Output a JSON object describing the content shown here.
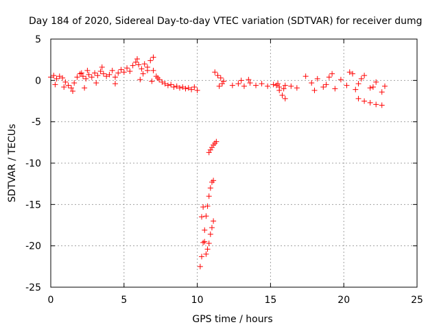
{
  "chart_data": {
    "type": "scatter",
    "title": "Day 184 of 2020, Sidereal Day-to-day VTEC variation (SDTVAR) for receiver dumg",
    "xlabel": "GPS time / hours",
    "ylabel": "SDTVAR / TECUs",
    "xlim": [
      0,
      25
    ],
    "ylim": [
      -25,
      5
    ],
    "xticks": [
      0,
      5,
      10,
      15,
      20,
      25
    ],
    "yticks": [
      5,
      0,
      -5,
      -10,
      -15,
      -20,
      -25
    ],
    "grid": true,
    "marker": "+",
    "color": "#ff0000",
    "series": [
      {
        "name": "SDTVAR",
        "x": [
          0.0,
          0.2,
          0.4,
          0.6,
          0.8,
          1.0,
          1.2,
          1.4,
          1.6,
          1.8,
          2.0,
          2.2,
          2.4,
          2.6,
          2.8,
          3.0,
          3.2,
          3.4,
          3.6,
          3.8,
          4.0,
          4.2,
          4.4,
          4.6,
          4.8,
          5.0,
          5.2,
          5.4,
          5.6,
          5.8,
          6.0,
          6.2,
          6.4,
          6.6,
          6.8,
          7.0,
          7.2,
          7.4,
          7.6,
          7.8,
          8.0,
          8.2,
          8.4,
          8.6,
          8.8,
          9.0,
          9.2,
          9.4,
          9.6,
          9.8,
          10.0,
          0.3,
          0.9,
          1.5,
          2.1,
          2.5,
          3.5,
          4.4,
          5.9,
          6.3,
          6.6,
          7.0,
          7.3,
          2.3,
          3.1,
          6.1,
          6.9,
          11.2,
          11.4,
          11.6,
          11.8,
          11.5,
          11.7,
          12.4,
          12.8,
          13.2,
          13.6,
          14.0,
          14.4,
          14.8,
          15.2,
          15.6,
          16.0,
          16.4,
          16.8,
          13.0,
          13.5,
          15.4,
          15.6,
          15.8,
          16.0,
          15.5,
          15.9,
          17.4,
          17.8,
          18.2,
          18.6,
          19.0,
          19.4,
          19.8,
          20.2,
          20.6,
          21.0,
          21.4,
          21.8,
          22.2,
          22.6,
          22.8,
          18.0,
          19.2,
          20.4,
          21.2,
          22.0,
          18.8,
          20.8,
          21.0,
          21.4,
          21.8,
          22.2,
          22.6,
          10.8,
          10.9,
          11.0,
          11.1,
          11.2,
          11.3,
          10.2,
          10.3,
          10.4,
          10.5,
          10.6,
          10.7,
          10.8,
          10.9,
          11.0,
          11.1,
          10.3,
          10.4,
          10.5,
          10.6,
          10.7,
          10.8,
          10.9,
          11.0,
          11.1
        ],
        "y": [
          0.4,
          0.6,
          0.2,
          0.5,
          0.3,
          -0.2,
          -0.6,
          -0.9,
          -0.3,
          0.4,
          0.8,
          0.5,
          0.2,
          0.7,
          0.4,
          0.9,
          0.6,
          1.1,
          0.8,
          0.5,
          0.7,
          1.2,
          0.4,
          0.9,
          1.3,
          1.0,
          1.5,
          1.1,
          1.8,
          2.2,
          1.9,
          1.4,
          2.0,
          1.6,
          2.4,
          1.2,
          0.5,
          0.1,
          -0.2,
          -0.4,
          -0.6,
          -0.5,
          -0.8,
          -0.7,
          -0.9,
          -0.8,
          -1.0,
          -0.9,
          -1.1,
          -0.8,
          -1.2,
          -0.5,
          -0.8,
          -1.3,
          0.9,
          1.2,
          1.6,
          -0.4,
          2.6,
          0.8,
          1.2,
          2.8,
          0.3,
          -0.9,
          -0.3,
          0.1,
          -0.1,
          1.0,
          0.6,
          0.3,
          -0.1,
          -0.7,
          -0.4,
          -0.6,
          -0.4,
          -0.7,
          -0.3,
          -0.6,
          -0.4,
          -0.7,
          -0.5,
          -0.8,
          -0.6,
          -0.7,
          -0.9,
          0.0,
          0.1,
          -0.6,
          -1.2,
          -1.8,
          -2.2,
          -0.4,
          -1.0,
          0.5,
          -0.3,
          0.2,
          -0.8,
          0.4,
          -1.0,
          0.1,
          -0.6,
          0.8,
          -0.4,
          0.6,
          -0.9,
          -0.2,
          -1.4,
          -0.7,
          -1.2,
          0.8,
          1.0,
          0.2,
          -0.8,
          -0.5,
          -1.1,
          -2.2,
          -2.5,
          -2.7,
          -2.9,
          -3.0,
          -8.7,
          -8.4,
          -8.1,
          -7.8,
          -7.6,
          -7.4,
          -22.5,
          -21.3,
          -19.6,
          -18.1,
          -16.4,
          -15.2,
          -14.0,
          -13.0,
          -12.3,
          -12.1,
          -16.5,
          -15.3,
          -19.5,
          -21.0,
          -20.4,
          -19.7,
          -18.6,
          -17.8,
          -17.0
        ]
      }
    ]
  }
}
